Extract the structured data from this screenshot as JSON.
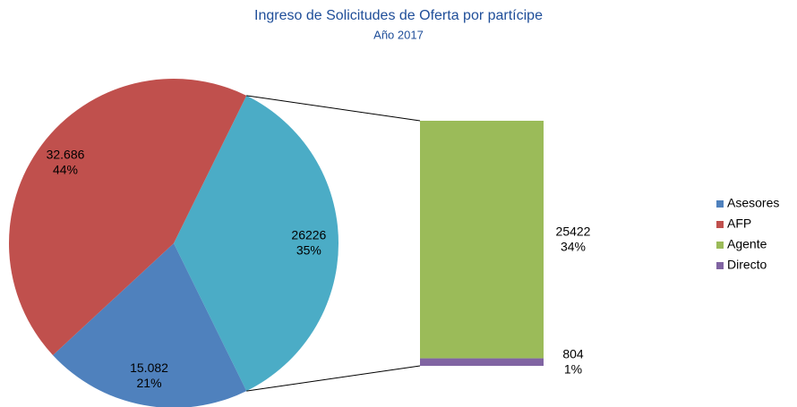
{
  "chart_data": {
    "type": "pie_of_bar",
    "title": "Ingreso de Solicitudes de Oferta por partícipe",
    "subtitle": "Año 2017",
    "pie": {
      "categories": [
        "Asesores",
        "AFP",
        null
      ],
      "values": [
        15082,
        32686,
        26226
      ],
      "value_labels": [
        "15.082",
        "32.686",
        "26226"
      ],
      "percent_labels": [
        "21%",
        "44%",
        "35%"
      ],
      "colors": [
        "#4f81bd",
        "#c0504d",
        "#4bacc6"
      ]
    },
    "bar": {
      "categories": [
        "Agente",
        "Directo"
      ],
      "values": [
        25422,
        804
      ],
      "percent_labels": [
        "34%",
        "1%"
      ],
      "colors": [
        "#9bbb59",
        "#8064a2"
      ]
    },
    "legend": "right"
  }
}
